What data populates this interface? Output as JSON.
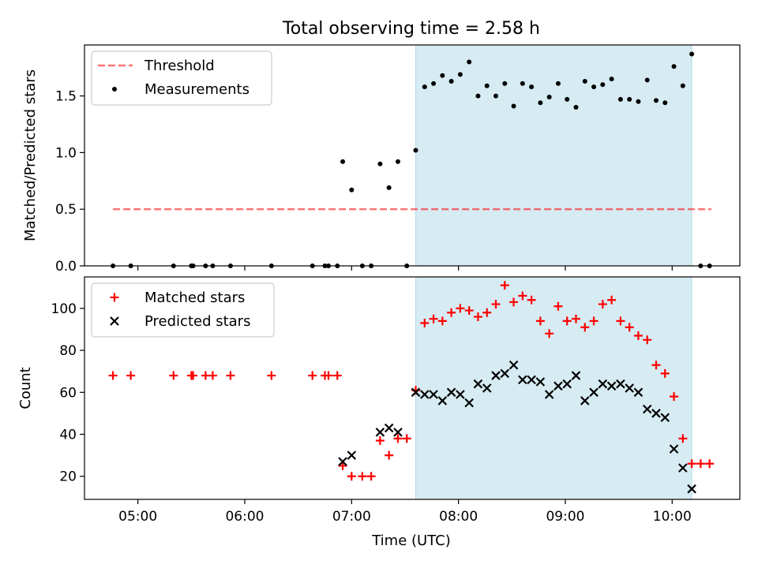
{
  "figure": {
    "title": "Total observing time = 2.58 h",
    "xlabel": "Time (UTC)"
  },
  "colors": {
    "highlight": "#add8e6",
    "threshold": "#ff0000",
    "measurement": "#000000",
    "matched": "#ff0000",
    "predicted": "#000000"
  },
  "chart_data": [
    {
      "type": "scatter",
      "name": "ratio",
      "ylabel": "Matched/Predicted stars",
      "ylim": [
        0,
        1.95
      ],
      "yticks": [
        0.0,
        0.5,
        1.0,
        1.5
      ],
      "ytick_labels": [
        "0.0",
        "0.5",
        "1.0",
        "1.5"
      ],
      "xlim": [
        "04:30",
        "10:38"
      ],
      "xticks": [
        "05:00",
        "06:00",
        "07:00",
        "08:00",
        "09:00",
        "10:00"
      ],
      "highlight": {
        "from": "07:36",
        "to": "10:11"
      },
      "legend": {
        "position": "top-left",
        "entries": [
          "Threshold",
          "Measurements"
        ]
      },
      "series": [
        {
          "name": "Threshold",
          "kind": "dashed-line",
          "x": [
            "04:46",
            "10:22"
          ],
          "y": [
            0.5,
            0.5
          ]
        },
        {
          "name": "Measurements",
          "kind": "points",
          "x": [
            "04:46",
            "04:56",
            "05:20",
            "05:30",
            "05:31",
            "05:38",
            "05:42",
            "05:52",
            "06:15",
            "06:38",
            "06:45",
            "06:47",
            "06:52",
            "06:55",
            "07:00",
            "07:06",
            "07:11",
            "07:16",
            "07:21",
            "07:26",
            "07:31",
            "07:36",
            "07:41",
            "07:46",
            "07:51",
            "07:56",
            "08:01",
            "08:06",
            "08:11",
            "08:16",
            "08:21",
            "08:26",
            "08:31",
            "08:36",
            "08:41",
            "08:46",
            "08:51",
            "08:56",
            "09:01",
            "09:06",
            "09:11",
            "09:16",
            "09:21",
            "09:26",
            "09:31",
            "09:36",
            "09:41",
            "09:46",
            "09:51",
            "09:56",
            "10:01",
            "10:06",
            "10:11",
            "10:16",
            "10:21"
          ],
          "y": [
            0,
            0,
            0,
            0,
            0,
            0,
            0,
            0,
            0,
            0,
            0,
            0,
            0,
            0.92,
            0.67,
            0,
            0,
            0.9,
            0.69,
            0.92,
            0,
            1.02,
            1.58,
            1.61,
            1.68,
            1.63,
            1.69,
            1.8,
            1.5,
            1.59,
            1.5,
            1.61,
            1.41,
            1.61,
            1.58,
            1.44,
            1.49,
            1.61,
            1.47,
            1.4,
            1.63,
            1.58,
            1.6,
            1.65,
            1.47,
            1.47,
            1.45,
            1.64,
            1.46,
            1.44,
            1.76,
            1.59,
            1.87,
            0,
            0
          ]
        }
      ]
    },
    {
      "type": "scatter",
      "name": "counts",
      "ylabel": "Count",
      "ylim": [
        9,
        115
      ],
      "yticks": [
        20,
        40,
        60,
        80,
        100
      ],
      "ytick_labels": [
        "20",
        "40",
        "60",
        "80",
        "100"
      ],
      "xlim": [
        "04:30",
        "10:38"
      ],
      "xticks": [
        "05:00",
        "06:00",
        "07:00",
        "08:00",
        "09:00",
        "10:00"
      ],
      "xtick_labels": [
        "05:00",
        "06:00",
        "07:00",
        "08:00",
        "09:00",
        "10:00"
      ],
      "highlight": {
        "from": "07:36",
        "to": "10:11"
      },
      "legend": {
        "position": "top-left",
        "entries": [
          "Matched stars",
          "Predicted stars"
        ]
      },
      "series": [
        {
          "name": "Matched stars",
          "marker": "plus",
          "x": [
            "04:46",
            "04:56",
            "05:20",
            "05:30",
            "05:31",
            "05:38",
            "05:42",
            "05:52",
            "06:15",
            "06:38",
            "06:45",
            "06:47",
            "06:52",
            "06:55",
            "07:00",
            "07:06",
            "07:11",
            "07:16",
            "07:21",
            "07:26",
            "07:31",
            "07:36",
            "07:41",
            "07:46",
            "07:51",
            "07:56",
            "08:01",
            "08:06",
            "08:11",
            "08:16",
            "08:21",
            "08:26",
            "08:31",
            "08:36",
            "08:41",
            "08:46",
            "08:51",
            "08:56",
            "09:01",
            "09:06",
            "09:11",
            "09:16",
            "09:21",
            "09:26",
            "09:31",
            "09:36",
            "09:41",
            "09:46",
            "09:51",
            "09:56",
            "10:01",
            "10:06",
            "10:11",
            "10:16",
            "10:21"
          ],
          "y": [
            68,
            68,
            68,
            68,
            68,
            68,
            68,
            68,
            68,
            68,
            68,
            68,
            68,
            25,
            20,
            20,
            20,
            37,
            30,
            38,
            38,
            61,
            93,
            95,
            94,
            98,
            100,
            99,
            96,
            98,
            102,
            111,
            103,
            106,
            104,
            94,
            88,
            101,
            94,
            95,
            91,
            94,
            102,
            104,
            94,
            91,
            87,
            85,
            73,
            69,
            58,
            38,
            26,
            26,
            26
          ]
        },
        {
          "name": "Predicted stars",
          "marker": "cross",
          "x": [
            "06:55",
            "07:00",
            "07:16",
            "07:21",
            "07:26",
            "07:36",
            "07:41",
            "07:46",
            "07:51",
            "07:56",
            "08:01",
            "08:06",
            "08:11",
            "08:16",
            "08:21",
            "08:26",
            "08:31",
            "08:36",
            "08:41",
            "08:46",
            "08:51",
            "08:56",
            "09:01",
            "09:06",
            "09:11",
            "09:16",
            "09:21",
            "09:26",
            "09:31",
            "09:36",
            "09:41",
            "09:46",
            "09:51",
            "09:56",
            "10:01",
            "10:06",
            "10:11"
          ],
          "y": [
            27,
            30,
            41,
            43,
            41,
            60,
            59,
            59,
            56,
            60,
            59,
            55,
            64,
            62,
            68,
            69,
            73,
            66,
            66,
            65,
            59,
            63,
            64,
            68,
            56,
            60,
            64,
            63,
            64,
            62,
            60,
            52,
            50,
            48,
            33,
            24,
            14
          ]
        }
      ]
    }
  ]
}
